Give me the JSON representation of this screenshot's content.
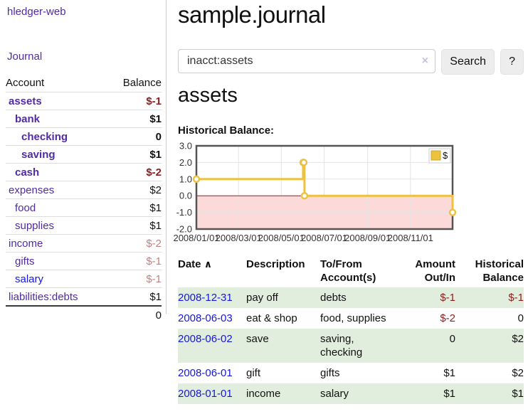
{
  "app_title": "hledger-web",
  "sidebar": {
    "journal_link": "Journal",
    "table": {
      "account_header": "Account",
      "balance_header": "Balance",
      "rows": [
        {
          "name": "assets",
          "balance": "$-1"
        },
        {
          "name": "bank",
          "balance": "$1"
        },
        {
          "name": "checking",
          "balance": "0"
        },
        {
          "name": "saving",
          "balance": "$1"
        },
        {
          "name": "cash",
          "balance": "$-2"
        },
        {
          "name": "expenses",
          "balance": "$2"
        },
        {
          "name": "food",
          "balance": "$1"
        },
        {
          "name": "supplies",
          "balance": "$1"
        },
        {
          "name": "income",
          "balance": "$-2"
        },
        {
          "name": "gifts",
          "balance": "$-1"
        },
        {
          "name": "salary",
          "balance": "$-1"
        },
        {
          "name": "liabilities:debts",
          "balance": "$1"
        }
      ],
      "total": "0"
    }
  },
  "main": {
    "title": "sample.journal",
    "search": {
      "value": "inacct:assets",
      "clear_icon": "×",
      "search_button": "Search",
      "help_button": "?"
    },
    "account_heading": "assets",
    "chart_label": "Historical Balance:"
  },
  "chart_data": {
    "type": "line",
    "step": true,
    "title": "Historical Balance:",
    "series": [
      {
        "name": "$",
        "x": [
          "2008-01-01",
          "2008-06-01",
          "2008-06-02",
          "2008-06-03",
          "2008-12-31"
        ],
        "values": [
          1,
          2,
          2,
          0,
          -1
        ]
      }
    ],
    "xlim": [
      "2008-01-01",
      "2008-12-31"
    ],
    "ylim": [
      -2,
      3
    ],
    "yticks": [
      3,
      2,
      1,
      0,
      -1,
      -2
    ],
    "ytick_labels": [
      "3.0",
      "2.0",
      "1.0",
      "0.0",
      "-1.0",
      "-2.0"
    ],
    "xtick_labels": [
      "2008/01/01",
      "2008/03/01",
      "2008/05/01",
      "2008/07/01",
      "2008/09/01",
      "2008/11/01"
    ],
    "legend": {
      "label": "$",
      "position": "top-right"
    },
    "grid": true,
    "colors": {
      "line": "#edc240",
      "marker_fill": "#ffffff",
      "negative_region": "#fcdada",
      "zero_line": "#aa1111",
      "grid": "#e4e4e4",
      "border": "#545454",
      "legend_square_border": "#c9a42e"
    }
  },
  "register": {
    "headers": {
      "date": "Date",
      "sort_icon": "∧",
      "description": "Description",
      "account_line1": "To/From",
      "account_line2": "Account(s)",
      "amount_line1": "Amount",
      "amount_line2": "Out/In",
      "balance_line1": "Historical",
      "balance_line2": "Balance"
    },
    "rows": [
      {
        "date": "2008-12-31",
        "description": "pay off",
        "accounts": "debts",
        "amount": "$-1",
        "balance": "$-1"
      },
      {
        "date": "2008-06-03",
        "description": "eat & shop",
        "accounts": "food, supplies",
        "amount": "$-2",
        "balance": "0"
      },
      {
        "date": "2008-06-02",
        "description": "save",
        "accounts": "saving, checking",
        "amount": "0",
        "balance": "$2"
      },
      {
        "date": "2008-06-01",
        "description": "gift",
        "accounts": "gifts",
        "amount": "$1",
        "balance": "$2"
      },
      {
        "date": "2008-01-01",
        "description": "income",
        "accounts": "salary",
        "amount": "$1",
        "balance": "$1"
      }
    ]
  }
}
